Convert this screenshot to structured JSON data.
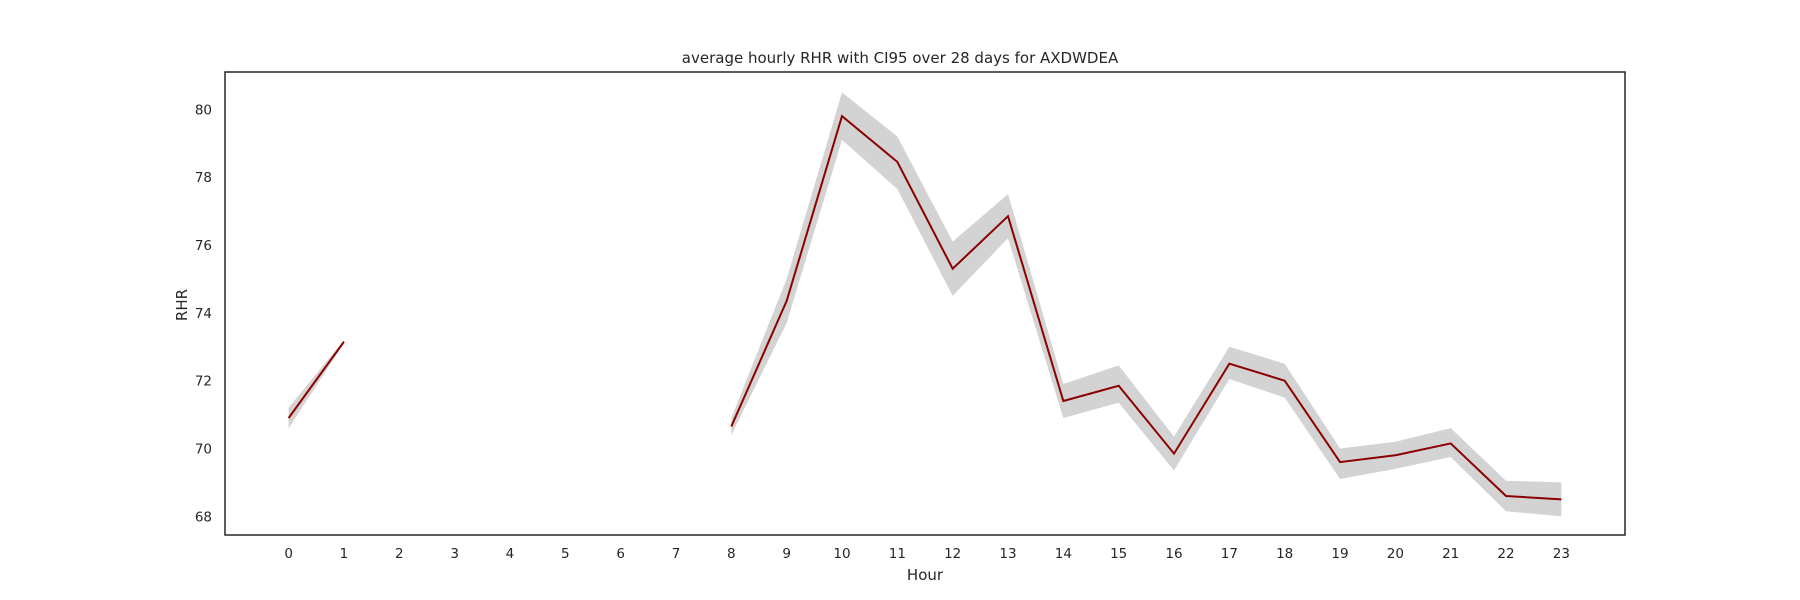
{
  "chart_data": {
    "type": "line",
    "title": "average hourly RHR with CI95 over 28 days for AXDWDEA",
    "xlabel": "Hour",
    "ylabel": "RHR",
    "xlim": [
      -1.15,
      24.15
    ],
    "ylim": [
      67.45,
      81.1
    ],
    "grid": false,
    "legend": "none",
    "line_color": "#8b0000",
    "band_color": "#d3d3d3",
    "x_ticks": [
      0,
      1,
      2,
      3,
      4,
      5,
      6,
      7,
      8,
      9,
      10,
      11,
      12,
      13,
      14,
      15,
      16,
      17,
      18,
      19,
      20,
      21,
      22,
      23
    ],
    "y_ticks": [
      68,
      70,
      72,
      74,
      76,
      78,
      80
    ],
    "segments": [
      {
        "x": [
          0,
          1
        ],
        "y": [
          70.9,
          73.15
        ],
        "ci_low": [
          70.6,
          73.1
        ],
        "ci_high": [
          71.2,
          73.2
        ]
      },
      {
        "x": [
          8,
          9,
          10,
          11,
          12,
          13,
          14,
          15,
          16,
          17,
          18,
          19,
          20,
          21,
          22,
          23
        ],
        "y": [
          70.65,
          74.35,
          79.8,
          78.45,
          75.3,
          76.85,
          71.4,
          71.85,
          69.85,
          72.5,
          72.0,
          69.6,
          69.8,
          70.15,
          68.6,
          68.5
        ],
        "ci_low": [
          70.4,
          73.7,
          79.1,
          77.65,
          74.5,
          76.2,
          70.9,
          71.35,
          69.35,
          72.05,
          71.5,
          69.1,
          69.4,
          69.75,
          68.15,
          68.0
        ],
        "ci_high": [
          70.9,
          75.0,
          80.5,
          79.2,
          76.1,
          77.5,
          71.9,
          72.45,
          70.35,
          73.0,
          72.5,
          70.0,
          70.2,
          70.6,
          69.05,
          69.0
        ]
      }
    ]
  }
}
